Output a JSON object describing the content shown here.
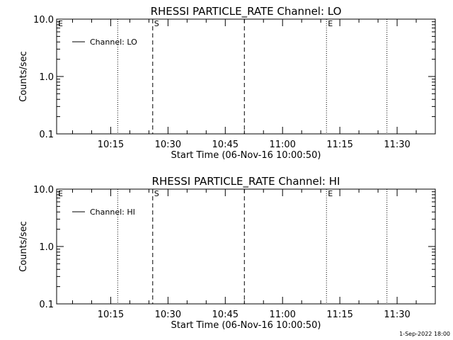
{
  "chart_data": [
    {
      "type": "line",
      "title": "RHESSI PARTICLE_RATE Channel: LO",
      "xlabel": "Start Time (06-Nov-16 10:00:50)",
      "ylabel": "Counts/sec",
      "yscale": "log",
      "ylim": [
        0.1,
        10.0
      ],
      "yticks": [
        "10.0",
        "1.0",
        "0.1"
      ],
      "xlim": [
        "10:00:50",
        "11:40:00"
      ],
      "xticks": [
        "10:15",
        "10:30",
        "10:45",
        "11:00",
        "11:15",
        "11:30"
      ],
      "legend": {
        "position": "top-left",
        "entries": [
          "Channel: LO"
        ]
      },
      "series": [
        {
          "name": "Channel: LO",
          "x": [],
          "y": []
        }
      ],
      "events": [
        {
          "time": "10:00:50",
          "style": "dotted",
          "label": "E"
        },
        {
          "time": "10:16:50",
          "style": "dotted",
          "label": ""
        },
        {
          "time": "10:26:00",
          "style": "dashed",
          "label": "S"
        },
        {
          "time": "10:50:00",
          "style": "dashed",
          "label": ""
        },
        {
          "time": "11:11:30",
          "style": "dotted",
          "label": "E"
        },
        {
          "time": "11:27:20",
          "style": "dotted",
          "label": ""
        }
      ]
    },
    {
      "type": "line",
      "title": "RHESSI PARTICLE_RATE Channel: HI",
      "xlabel": "Start Time (06-Nov-16 10:00:50)",
      "ylabel": "Counts/sec",
      "yscale": "log",
      "ylim": [
        0.1,
        10.0
      ],
      "yticks": [
        "10.0",
        "1.0",
        "0.1"
      ],
      "xlim": [
        "10:00:50",
        "11:40:00"
      ],
      "xticks": [
        "10:15",
        "10:30",
        "10:45",
        "11:00",
        "11:15",
        "11:30"
      ],
      "legend": {
        "position": "top-left",
        "entries": [
          "Channel: HI"
        ]
      },
      "series": [
        {
          "name": "Channel: HI",
          "x": [],
          "y": []
        }
      ],
      "events": [
        {
          "time": "10:00:50",
          "style": "dotted",
          "label": "E"
        },
        {
          "time": "10:16:50",
          "style": "dotted",
          "label": ""
        },
        {
          "time": "10:26:00",
          "style": "dashed",
          "label": "S"
        },
        {
          "time": "10:50:00",
          "style": "dashed",
          "label": ""
        },
        {
          "time": "11:11:30",
          "style": "dotted",
          "label": "E"
        },
        {
          "time": "11:27:20",
          "style": "dotted",
          "label": ""
        }
      ]
    }
  ],
  "footer": {
    "timestamp": "1-Sep-2022 18:00"
  }
}
